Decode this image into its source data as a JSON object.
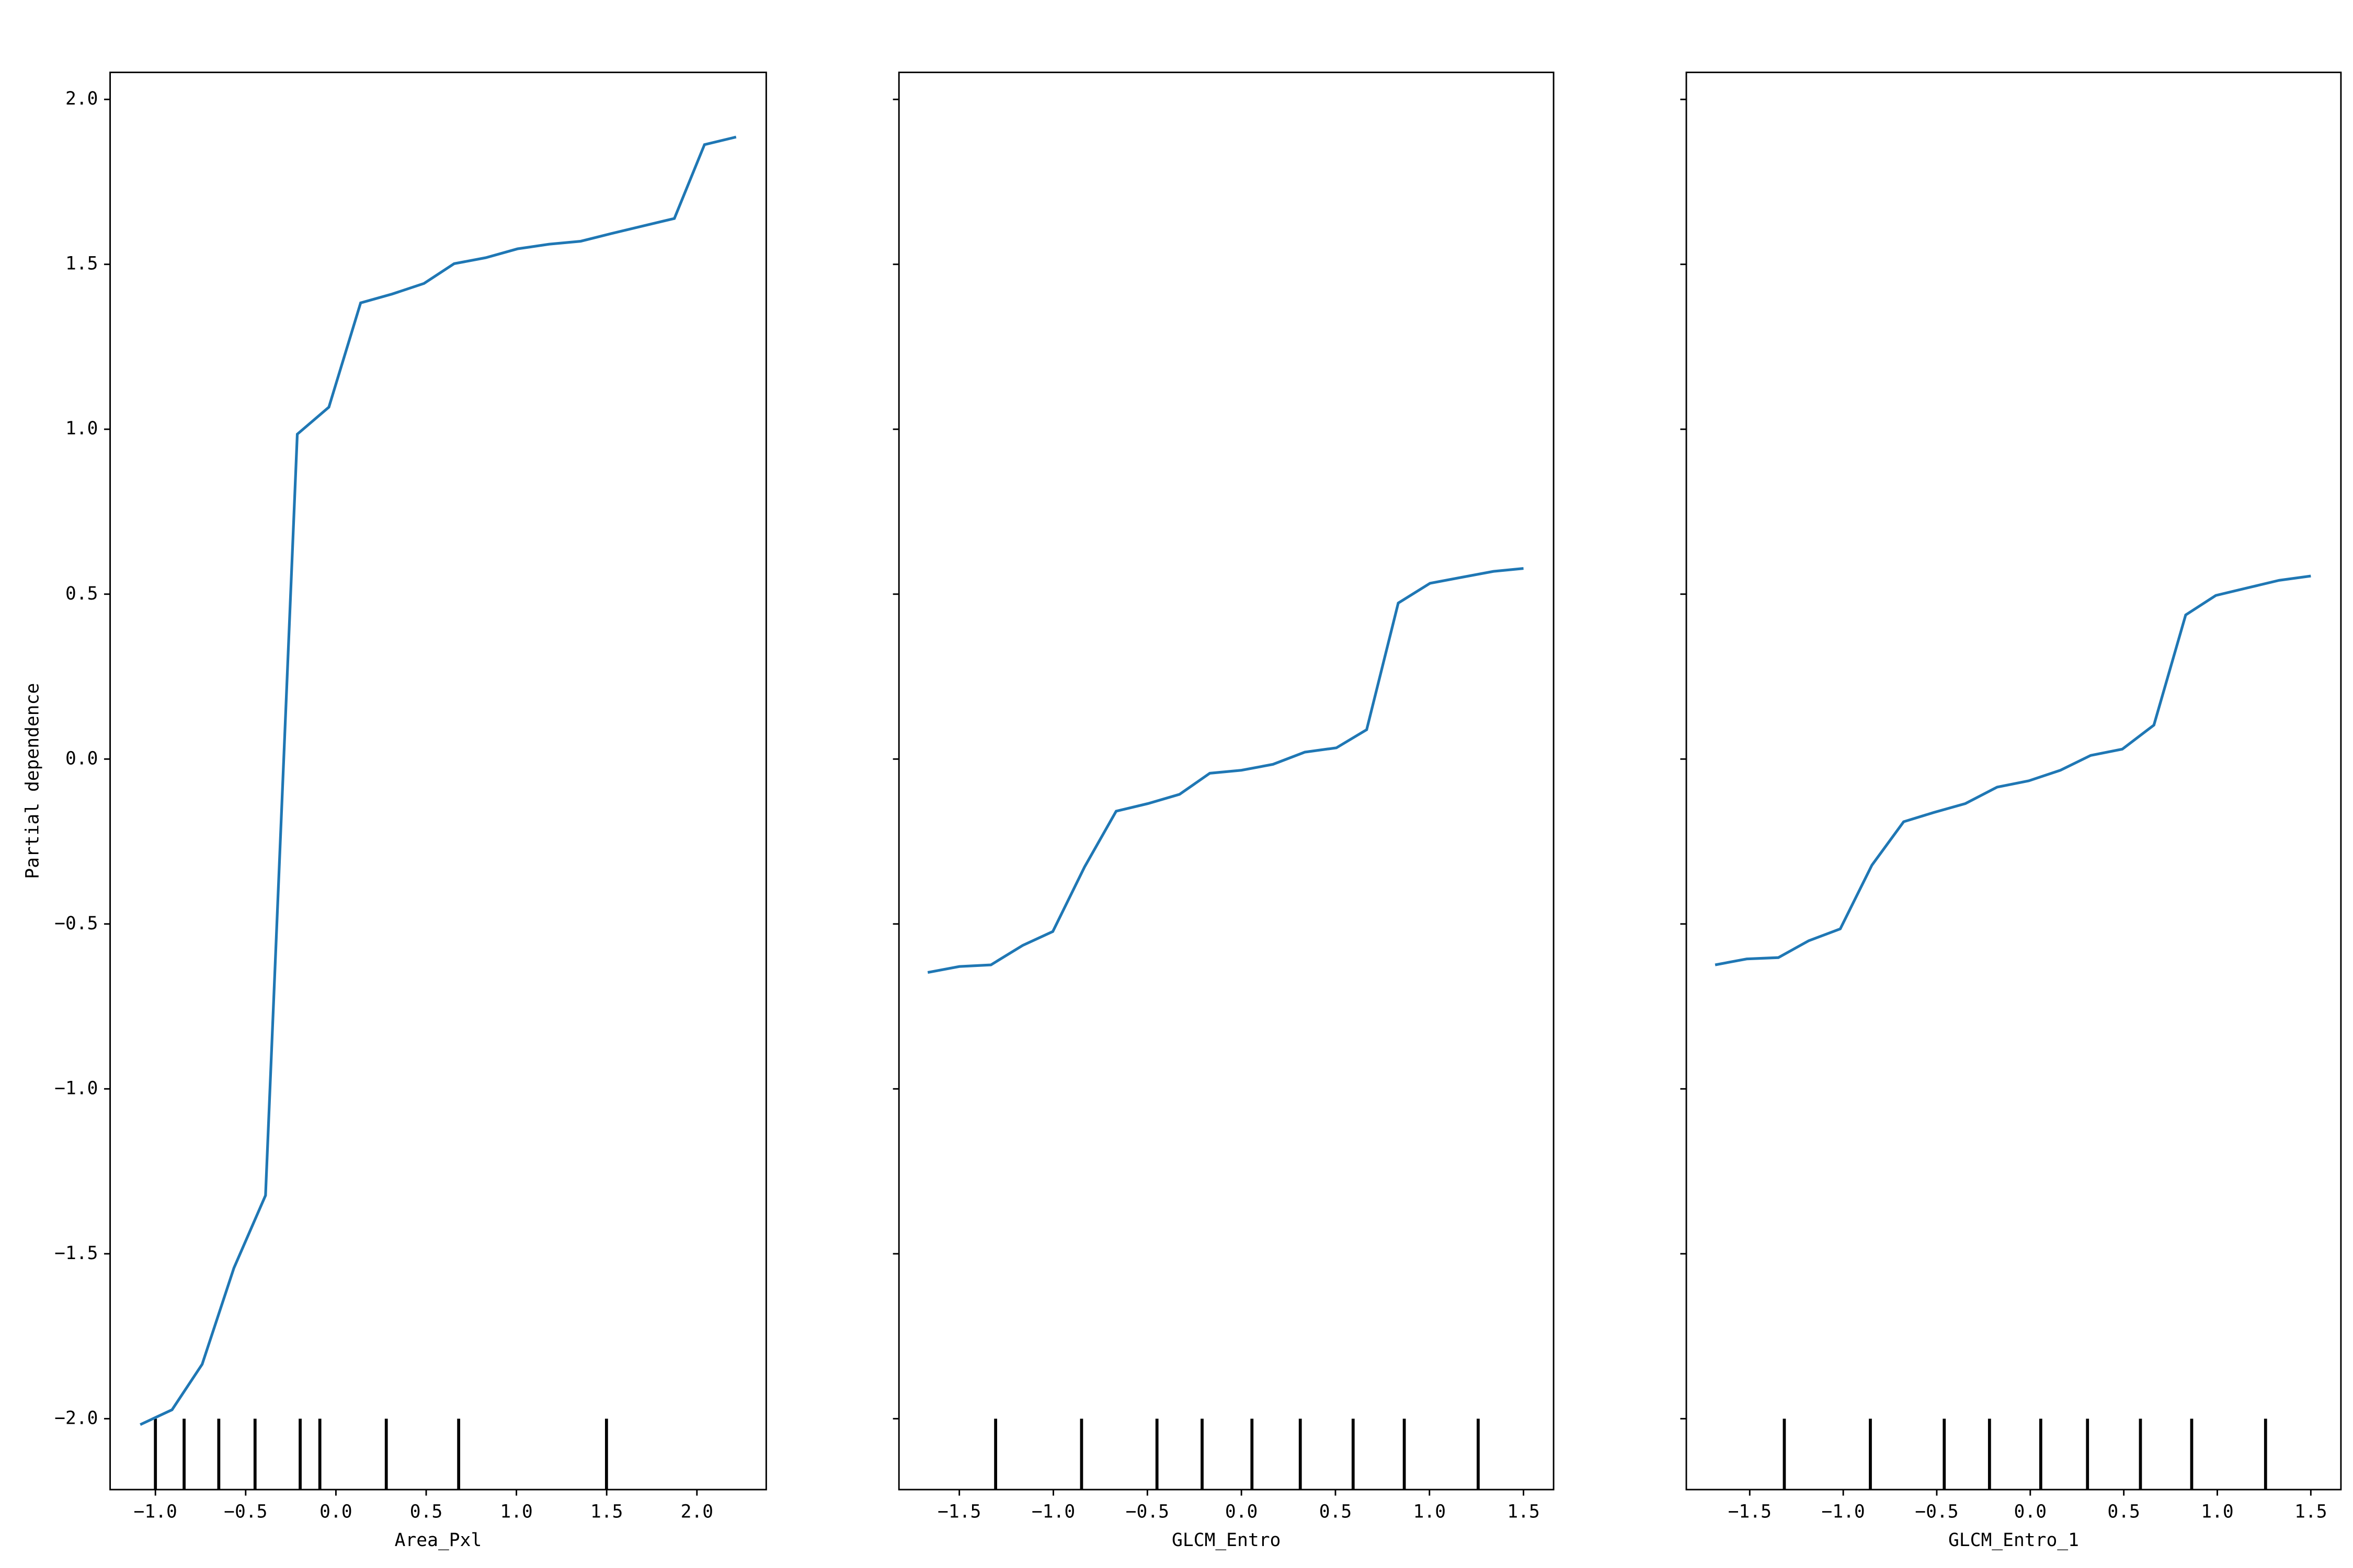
{
  "chart_data": [
    {
      "type": "line",
      "x_label": "Area_Pxl",
      "y_label": "Partial dependence",
      "color": "#1f77b4",
      "x": [
        -1.084,
        -0.908,
        -0.741,
        -0.565,
        -0.39,
        -0.214,
        -0.039,
        0.137,
        0.312,
        0.488,
        0.655,
        0.83,
        1.006,
        1.181,
        1.356,
        1.524,
        1.699,
        1.875,
        2.042,
        2.217
      ],
      "values": [
        -2.018,
        -1.973,
        -1.835,
        -1.543,
        -1.323,
        0.985,
        1.067,
        1.383,
        1.41,
        1.442,
        1.502,
        1.52,
        1.547,
        1.561,
        1.57,
        1.593,
        1.616,
        1.639,
        1.863,
        1.886
      ],
      "deciles": [
        -1.0,
        -0.841,
        -0.649,
        -0.448,
        -0.198,
        -0.089,
        0.279,
        0.68,
        1.499
      ],
      "xlim": [
        -1.251,
        2.384
      ],
      "xticks": [
        {
          "value": -1.0,
          "label": "−1.0"
        },
        {
          "value": -0.5,
          "label": "−0.5"
        },
        {
          "value": 0,
          "label": "0.0"
        },
        {
          "value": 0.5,
          "label": "0.5"
        },
        {
          "value": 1.0,
          "label": "1.0"
        },
        {
          "value": 1.5,
          "label": "1.5"
        },
        {
          "value": 2.0,
          "label": "2.0"
        }
      ],
      "ylim": [
        -2.215,
        2.082
      ],
      "yticks": [
        {
          "value": -2.0,
          "label": "−2.0"
        },
        {
          "value": -1.5,
          "label": "−1.5"
        },
        {
          "value": -1.0,
          "label": "−1.0"
        },
        {
          "value": -0.5,
          "label": "−0.5"
        },
        {
          "value": 0,
          "label": "0.0"
        },
        {
          "value": 0.5,
          "label": "0.5"
        },
        {
          "value": 1.0,
          "label": "1.0"
        },
        {
          "value": 1.5,
          "label": "1.5"
        },
        {
          "value": 2.0,
          "label": "2.0"
        }
      ]
    },
    {
      "type": "line",
      "x_label": "GLCM_Entro",
      "color": "#1f77b4",
      "x": [
        -1.668,
        -1.5,
        -1.332,
        -1.163,
        -1.003,
        -0.834,
        -0.666,
        -0.497,
        -0.329,
        -0.168,
        0.0,
        0.168,
        0.337,
        0.505,
        0.666,
        0.834,
        1.003,
        1.171,
        1.34,
        1.5
      ],
      "values": [
        -0.647,
        -0.629,
        -0.624,
        -0.565,
        -0.523,
        -0.327,
        -0.158,
        -0.135,
        -0.107,
        -0.043,
        -0.034,
        -0.016,
        0.021,
        0.034,
        0.089,
        0.473,
        0.533,
        0.551,
        0.569,
        0.578
      ],
      "deciles": [
        -1.307,
        -0.85,
        -0.449,
        -0.209,
        0.056,
        0.313,
        0.594,
        0.866,
        1.259
      ],
      "xlim": [
        -1.821,
        1.66
      ],
      "xticks": [
        {
          "value": -1.5,
          "label": "−1.5"
        },
        {
          "value": -1.0,
          "label": "−1.0"
        },
        {
          "value": -0.5,
          "label": "−0.5"
        },
        {
          "value": 0,
          "label": "0.0"
        },
        {
          "value": 0.5,
          "label": "0.5"
        },
        {
          "value": 1.0,
          "label": "1.0"
        },
        {
          "value": 1.5,
          "label": "1.5"
        }
      ]
    },
    {
      "type": "line",
      "x_label": "GLCM_Entro_1",
      "color": "#1f77b4",
      "x": [
        -1.685,
        -1.516,
        -1.347,
        -1.185,
        -1.016,
        -0.847,
        -0.677,
        -0.516,
        -0.347,
        -0.177,
        -0.008,
        0.161,
        0.323,
        0.492,
        0.661,
        0.831,
        0.992,
        1.161,
        1.331,
        1.5
      ],
      "values": [
        -0.624,
        -0.606,
        -0.602,
        -0.551,
        -0.515,
        -0.322,
        -0.19,
        -0.162,
        -0.135,
        -0.085,
        -0.066,
        -0.034,
        0.011,
        0.03,
        0.103,
        0.437,
        0.496,
        0.519,
        0.542,
        0.555
      ],
      "deciles": [
        -1.315,
        -0.855,
        -0.46,
        -0.218,
        0.056,
        0.306,
        0.589,
        0.863,
        1.258
      ],
      "xlim": [
        -1.839,
        1.661
      ],
      "xticks": [
        {
          "value": -1.5,
          "label": "−1.5"
        },
        {
          "value": -1.0,
          "label": "−1.0"
        },
        {
          "value": -0.5,
          "label": "−0.5"
        },
        {
          "value": 0,
          "label": "0.0"
        },
        {
          "value": 0.5,
          "label": "0.5"
        },
        {
          "value": 1.0,
          "label": "1.0"
        },
        {
          "value": 1.5,
          "label": "1.5"
        }
      ]
    }
  ]
}
